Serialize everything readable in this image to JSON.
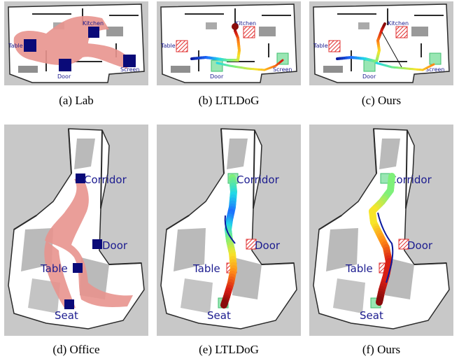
{
  "figure": {
    "panels": [
      {
        "id": "a",
        "caption": "(a) Lab",
        "map": "lab",
        "variant": "regions",
        "labels": {
          "table": "Table",
          "kitchen": "Kitchen",
          "door": "Door",
          "screen": "Screen"
        }
      },
      {
        "id": "b",
        "caption": "(b) LTLDoG",
        "map": "lab",
        "variant": "ltldog",
        "labels": {
          "table": "Table",
          "kitchen": "Kitchen",
          "door": "Door",
          "screen": "Screen"
        }
      },
      {
        "id": "c",
        "caption": "(c) Ours",
        "map": "lab",
        "variant": "ours",
        "labels": {
          "table": "Table",
          "kitchen": "Kitchen",
          "door": "Door",
          "screen": "Screen"
        }
      },
      {
        "id": "d",
        "caption": "(d) Office",
        "map": "office",
        "variant": "regions",
        "labels": {
          "corridor": "Corridor",
          "door": "Door",
          "table": "Table",
          "seat": "Seat"
        }
      },
      {
        "id": "e",
        "caption": "(e) LTLDoG",
        "map": "office",
        "variant": "ltldog",
        "labels": {
          "corridor": "Corridor",
          "door": "Door",
          "table": "Table",
          "seat": "Seat"
        }
      },
      {
        "id": "f",
        "caption": "(f) Ours",
        "map": "office",
        "variant": "ours",
        "labels": {
          "corridor": "Corridor",
          "door": "Door",
          "table": "Table",
          "seat": "Seat"
        }
      }
    ]
  },
  "colors": {
    "background_gray": "#c8c8c8",
    "free_space": "#ffffff",
    "wall": "#2a2a2a",
    "reachable_region": "#e8948e",
    "goal_region": "#0a0a78",
    "visited_goal": "#7fe0a0",
    "violated_goal": "#e03030",
    "label_text": "#1b1b8f"
  },
  "icons": [
    "region-square-icon",
    "hatched-region-icon",
    "trajectory-gradient"
  ]
}
